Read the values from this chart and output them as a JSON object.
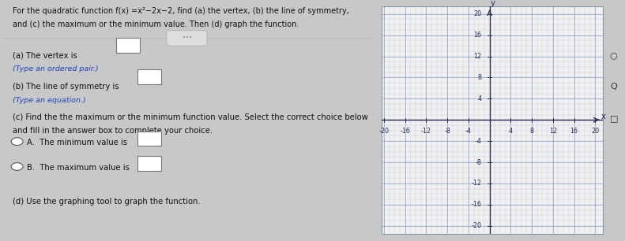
{
  "title_text": "For the quadratic function f(x) =x²−2x−2, find (a) the vertex, (b) the line of symmetry,",
  "title_text2": "and (c) the maximum or the minimum value. Then (d) graph the function.",
  "part_a_label": "(a) The vertex is",
  "part_a_hint": "(Type an ordered pair.)",
  "part_b_label": "(b) The line of symmetry is",
  "part_b_hint": "(Type an equation.)",
  "part_c_label": "(c) Find the the maximum or the minimum function value. Select the correct choice below",
  "part_c_label2": "and fill in the answer box to complete your choice.",
  "choice_a": "A.  The minimum value is",
  "choice_b": "B.  The maximum value is",
  "part_d_label": "(d) Use the graphing tool to graph the function.",
  "graph_xlim": [
    -20,
    20
  ],
  "graph_ylim": [
    -20,
    20
  ],
  "graph_xticks": [
    -20,
    -16,
    -12,
    -8,
    -4,
    4,
    8,
    12,
    16,
    20
  ],
  "graph_yticks": [
    20,
    16,
    12,
    8,
    4,
    -4,
    -8,
    -12,
    -16,
    -20
  ],
  "bg_color": "#c8c8c8",
  "panel_color": "#eeecec",
  "graph_bg": "#f2f0f0",
  "grid_color": "#8fa8c8",
  "axis_color": "#2a2a5a",
  "text_color": "#111111",
  "blue_text": "#1a44bb",
  "separator_color": "#bbbbbb"
}
